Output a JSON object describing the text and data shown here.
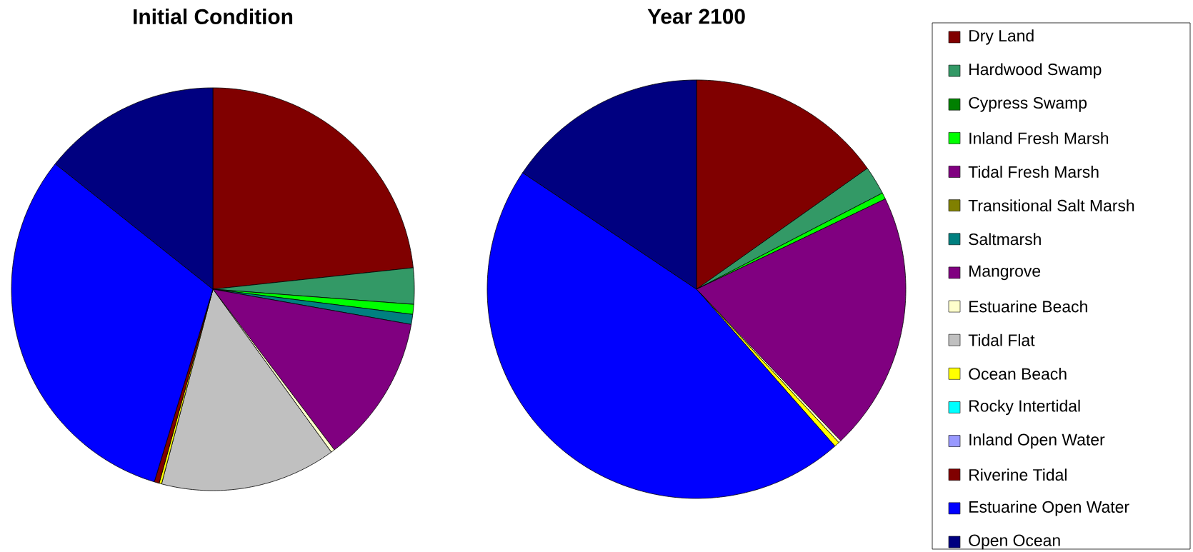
{
  "chart_data": [
    {
      "type": "pie",
      "title": "Initial Condition",
      "legend": false,
      "categories": [
        null,
        null,
        null,
        null,
        null,
        null,
        null,
        null,
        null,
        null,
        null,
        null,
        null,
        null,
        null,
        null
      ],
      "values": [
        23.3,
        2.9,
        0,
        0.8,
        0,
        0,
        0.8,
        11.9,
        0.3,
        14.1,
        0.2,
        0,
        0,
        0.4,
        31.0,
        14.3
      ],
      "colors": [
        "#800000",
        "#339966",
        "#008000",
        "#00ff00",
        "#800080",
        "#808000",
        "#008080",
        "#800080",
        "#ffffcc",
        "#c0c0c0",
        "#ffff00",
        "#00ffff",
        "#9999ff",
        "#800000",
        "#0000ff",
        "#000080"
      ]
    },
    {
      "type": "pie",
      "title": "Year 2100",
      "legend": "right",
      "categories": [
        "Dry Land",
        "Hardwood Swamp",
        "Cypress Swamp",
        "Inland Fresh Marsh",
        "Tidal Fresh Marsh",
        "Transitional Salt Marsh",
        "Saltmarsh",
        "Mangrove",
        "Estuarine Beach",
        "Tidal Flat",
        "Ocean Beach",
        "Rocky Intertidal",
        "Inland Open Water",
        "Riverine Tidal",
        "Estuarine Open Water",
        "Open Ocean"
      ],
      "values": [
        15.2,
        2.2,
        0,
        0.5,
        0,
        0,
        0,
        20.0,
        0.2,
        0,
        0.4,
        0,
        0,
        0,
        45.9,
        15.6
      ],
      "colors": [
        "#800000",
        "#339966",
        "#008000",
        "#00ff00",
        "#800080",
        "#808000",
        "#008080",
        "#800080",
        "#ffffcc",
        "#c0c0c0",
        "#ffff00",
        "#00ffff",
        "#9999ff",
        "#800000",
        "#0000ff",
        "#000080"
      ]
    }
  ]
}
